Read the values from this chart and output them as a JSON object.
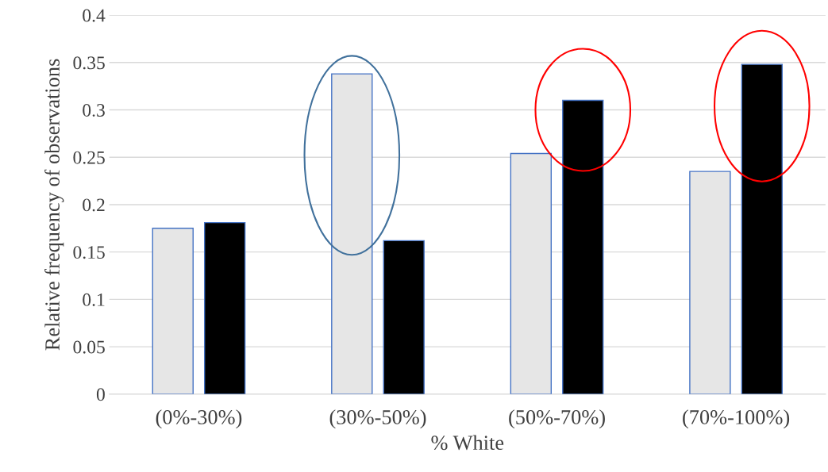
{
  "chart_data": {
    "type": "bar",
    "xlabel": "% White",
    "ylabel": "Relative frequency of observations",
    "categories": [
      "(0%-30%)",
      "(30%-50%)",
      "(50%-70%)",
      "(70%-100%)"
    ],
    "series": [
      {
        "color": "#e6e6e6",
        "values": [
          0.175,
          0.338,
          0.254,
          0.235
        ]
      },
      {
        "color": "#000000",
        "values": [
          0.181,
          0.162,
          0.31,
          0.348
        ]
      }
    ],
    "ylim": [
      0,
      0.4
    ],
    "yticks": [
      0,
      {
        "value": 0.05,
        "label": "0.05"
      },
      {
        "value": 0.1,
        "label": "0.1"
      },
      {
        "value": 0.15,
        "label": "0.15"
      },
      {
        "value": 0.2,
        "label": "0.2"
      },
      {
        "value": 0.25,
        "label": "0.25"
      },
      {
        "value": 0.3,
        "label": "0.3"
      },
      {
        "value": 0.35,
        "label": "0.35"
      },
      {
        "value": 0.4,
        "label": "0.4"
      }
    ],
    "grid": "y"
  }
}
